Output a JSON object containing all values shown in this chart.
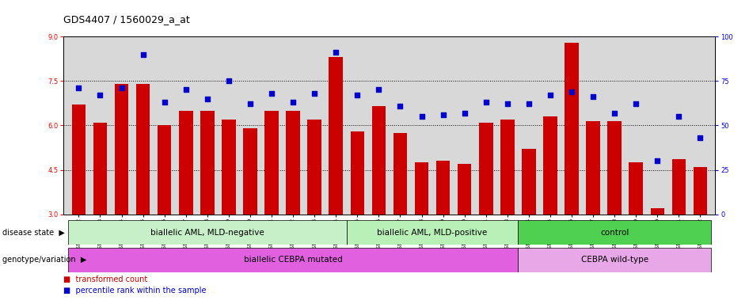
{
  "title": "GDS4407 / 1560029_a_at",
  "samples": [
    "GSM822482",
    "GSM822483",
    "GSM822484",
    "GSM822485",
    "GSM822486",
    "GSM822487",
    "GSM822488",
    "GSM822489",
    "GSM822490",
    "GSM822491",
    "GSM822492",
    "GSM822473",
    "GSM822474",
    "GSM822475",
    "GSM822476",
    "GSM822477",
    "GSM822478",
    "GSM822479",
    "GSM822480",
    "GSM822481",
    "GSM822463",
    "GSM822464",
    "GSM822465",
    "GSM822466",
    "GSM822467",
    "GSM822468",
    "GSM822469",
    "GSM822470",
    "GSM822471",
    "GSM822472"
  ],
  "bar_values": [
    6.7,
    6.1,
    7.4,
    7.4,
    6.0,
    6.5,
    6.5,
    6.2,
    5.9,
    6.5,
    6.5,
    6.2,
    8.3,
    5.8,
    6.65,
    5.75,
    4.75,
    4.8,
    4.7,
    6.1,
    6.2,
    5.2,
    6.3,
    8.8,
    6.15,
    6.15,
    4.75,
    3.2,
    4.85,
    4.6
  ],
  "dot_values": [
    71,
    67,
    71,
    90,
    63,
    70,
    65,
    75,
    62,
    68,
    63,
    68,
    91,
    67,
    70,
    61,
    55,
    56,
    57,
    63,
    62,
    62,
    67,
    69,
    66,
    57,
    62,
    30,
    55,
    43
  ],
  "ylim_left": [
    3,
    9
  ],
  "ylim_right": [
    0,
    100
  ],
  "yticks_left": [
    3,
    4.5,
    6.0,
    7.5,
    9
  ],
  "yticks_right": [
    0,
    25,
    50,
    75,
    100
  ],
  "bar_color": "#cc0000",
  "dot_color": "#0000cc",
  "plot_bg_color": "#d8d8d8",
  "groups": {
    "disease_state": [
      {
        "label": "biallelic AML, MLD-negative",
        "start": 0,
        "end": 13,
        "color": "#c8f0c8"
      },
      {
        "label": "biallelic AML, MLD-positive",
        "start": 13,
        "end": 21,
        "color": "#b8f0b8"
      },
      {
        "label": "control",
        "start": 21,
        "end": 30,
        "color": "#50d050"
      }
    ],
    "genotype": [
      {
        "label": "biallelic CEBPA mutated",
        "start": 0,
        "end": 21,
        "color": "#e060e0"
      },
      {
        "label": "CEBPA wild-type",
        "start": 21,
        "end": 30,
        "color": "#e8a8e8"
      }
    ]
  },
  "ds_label": "disease state",
  "gn_label": "genotype/variation",
  "legend_items": [
    {
      "label": "transformed count",
      "color": "#cc0000"
    },
    {
      "label": "percentile rank within the sample",
      "color": "#0000cc"
    }
  ],
  "group_dividers": [
    12.5,
    20.5
  ],
  "title_fontsize": 9,
  "tick_fontsize": 6,
  "annot_fontsize": 7.5
}
